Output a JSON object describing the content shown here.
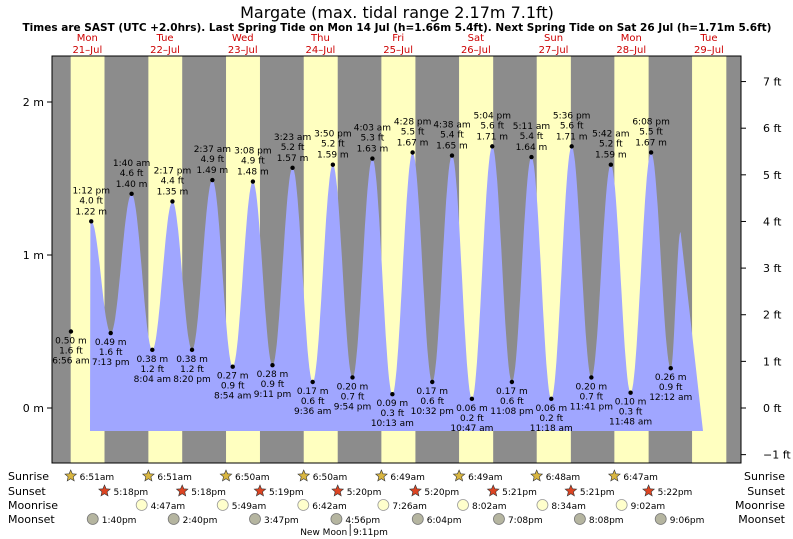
{
  "chart_data": {
    "type": "area",
    "title": "Margate (max. tidal range 2.17m 7.1ft)",
    "subtitle": "Times are SAST (UTC +2.0hrs). Last Spring Tide on Mon 14 Jul (h=1.66m 5.4ft). Next Spring Tide on Sat 26 Jul (h=1.71m 5.6ft)",
    "y_left_ticks": [
      {
        "v": 0,
        "label": "0 m"
      },
      {
        "v": 1,
        "label": "1 m"
      },
      {
        "v": 2,
        "label": "2 m"
      }
    ],
    "y_right_ticks": [
      {
        "ft": -1,
        "label": "−1 ft"
      },
      {
        "ft": 0,
        "label": "0 ft"
      },
      {
        "ft": 1,
        "label": "1 ft"
      },
      {
        "ft": 2,
        "label": "2 ft"
      },
      {
        "ft": 3,
        "label": "3 ft"
      },
      {
        "ft": 4,
        "label": "4 ft"
      },
      {
        "ft": 5,
        "label": "5 ft"
      },
      {
        "ft": 6,
        "label": "6 ft"
      },
      {
        "ft": 7,
        "label": "7 ft"
      }
    ],
    "ylim_m": [
      -0.3,
      2.3
    ],
    "days": [
      {
        "name": "Mon",
        "date": "21–Jul"
      },
      {
        "name": "Tue",
        "date": "22–Jul"
      },
      {
        "name": "Wed",
        "date": "23–Jul"
      },
      {
        "name": "Thu",
        "date": "24–Jul"
      },
      {
        "name": "Fri",
        "date": "25–Jul"
      },
      {
        "name": "Sat",
        "date": "26–Jul"
      },
      {
        "name": "Sun",
        "date": "27–Jul"
      },
      {
        "name": "Mon",
        "date": "28–Jul"
      },
      {
        "name": "Tue",
        "date": "29–Jul"
      }
    ],
    "tides": [
      {
        "day": 0,
        "time": "6:56 am",
        "h": 0.5,
        "m": "0.50 m",
        "ft": "1.6 ft",
        "type": "low"
      },
      {
        "day": 0,
        "time": "1:12 pm",
        "h": 1.22,
        "m": "1.22 m",
        "ft": "4.0 ft",
        "type": "high"
      },
      {
        "day": 0,
        "time": "7:13 pm",
        "h": 0.49,
        "m": "0.49 m",
        "ft": "1.6 ft",
        "type": "low"
      },
      {
        "day": 1,
        "time": "1:40 am",
        "h": 1.4,
        "m": "1.40 m",
        "ft": "4.6 ft",
        "type": "high"
      },
      {
        "day": 1,
        "time": "8:04 am",
        "h": 0.38,
        "m": "0.38 m",
        "ft": "1.2 ft",
        "type": "low"
      },
      {
        "day": 1,
        "time": "2:17 pm",
        "h": 1.35,
        "m": "1.35 m",
        "ft": "4.4 ft",
        "type": "high"
      },
      {
        "day": 1,
        "time": "8:20 pm",
        "h": 0.38,
        "m": "0.38 m",
        "ft": "1.2 ft",
        "type": "low"
      },
      {
        "day": 2,
        "time": "2:37 am",
        "h": 1.49,
        "m": "1.49 m",
        "ft": "4.9 ft",
        "type": "high"
      },
      {
        "day": 2,
        "time": "8:54 am",
        "h": 0.27,
        "m": "0.27 m",
        "ft": "0.9 ft",
        "type": "low"
      },
      {
        "day": 2,
        "time": "3:08 pm",
        "h": 1.48,
        "m": "1.48 m",
        "ft": "4.9 ft",
        "type": "high"
      },
      {
        "day": 2,
        "time": "9:11 pm",
        "h": 0.28,
        "m": "0.28 m",
        "ft": "0.9 ft",
        "type": "low"
      },
      {
        "day": 3,
        "time": "3:23 am",
        "h": 1.57,
        "m": "1.57 m",
        "ft": "5.2 ft",
        "type": "high"
      },
      {
        "day": 3,
        "time": "9:36 am",
        "h": 0.17,
        "m": "0.17 m",
        "ft": "0.6 ft",
        "type": "low"
      },
      {
        "day": 3,
        "time": "3:50 pm",
        "h": 1.59,
        "m": "1.59 m",
        "ft": "5.2 ft",
        "type": "high"
      },
      {
        "day": 3,
        "time": "9:54 pm",
        "h": 0.2,
        "m": "0.20 m",
        "ft": "0.7 ft",
        "type": "low"
      },
      {
        "day": 4,
        "time": "4:03 am",
        "h": 1.63,
        "m": "1.63 m",
        "ft": "5.3 ft",
        "type": "high"
      },
      {
        "day": 4,
        "time": "10:13 am",
        "h": 0.09,
        "m": "0.09 m",
        "ft": "0.3 ft",
        "type": "low"
      },
      {
        "day": 4,
        "time": "4:28 pm",
        "h": 1.67,
        "m": "1.67 m",
        "ft": "5.5 ft",
        "type": "high"
      },
      {
        "day": 4,
        "time": "10:32 pm",
        "h": 0.17,
        "m": "0.17 m",
        "ft": "0.6 ft",
        "type": "low"
      },
      {
        "day": 5,
        "time": "4:38 am",
        "h": 1.65,
        "m": "1.65 m",
        "ft": "5.4 ft",
        "type": "high"
      },
      {
        "day": 5,
        "time": "10:47 am",
        "h": 0.06,
        "m": "0.06 m",
        "ft": "0.2 ft",
        "type": "low"
      },
      {
        "day": 5,
        "time": "5:04 pm",
        "h": 1.71,
        "m": "1.71 m",
        "ft": "5.6 ft",
        "type": "high"
      },
      {
        "day": 5,
        "time": "11:08 pm",
        "h": 0.17,
        "m": "0.17 m",
        "ft": "0.6 ft",
        "type": "low"
      },
      {
        "day": 6,
        "time": "5:11 am",
        "h": 1.64,
        "m": "1.64 m",
        "ft": "5.4 ft",
        "type": "high"
      },
      {
        "day": 6,
        "time": "11:18 am",
        "h": 0.06,
        "m": "0.06 m",
        "ft": "0.2 ft",
        "type": "low"
      },
      {
        "day": 6,
        "time": "5:36 pm",
        "h": 1.71,
        "m": "1.71 m",
        "ft": "5.6 ft",
        "type": "high"
      },
      {
        "day": 6,
        "time": "11:41 pm",
        "h": 0.2,
        "m": "0.20 m",
        "ft": "0.7 ft",
        "type": "low"
      },
      {
        "day": 7,
        "time": "5:42 am",
        "h": 1.59,
        "m": "1.59 m",
        "ft": "5.2 ft",
        "type": "high"
      },
      {
        "day": 7,
        "time": "11:48 am",
        "h": 0.1,
        "m": "0.10 m",
        "ft": "0.3 ft",
        "type": "low"
      },
      {
        "day": 7,
        "time": "6:08 pm",
        "h": 1.67,
        "m": "1.67 m",
        "ft": "5.5 ft",
        "type": "high"
      },
      {
        "day": 8,
        "time": "12:12 am",
        "h": 0.26,
        "m": "0.26 m",
        "ft": "0.9 ft",
        "type": "low"
      }
    ],
    "sunrise": [
      "6:51am",
      "6:51am",
      "6:50am",
      "6:50am",
      "6:49am",
      "6:49am",
      "6:48am",
      "6:47am"
    ],
    "sunset": [
      "5:18pm",
      "5:18pm",
      "5:19pm",
      "5:20pm",
      "5:20pm",
      "5:21pm",
      "5:21pm",
      "5:22pm"
    ],
    "moonrise": [
      {
        "day": 1,
        "time": "4:47am"
      },
      {
        "day": 2,
        "time": "5:49am"
      },
      {
        "day": 3,
        "time": "6:42am"
      },
      {
        "day": 4,
        "time": "7:26am"
      },
      {
        "day": 5,
        "time": "8:02am"
      },
      {
        "day": 6,
        "time": "8:34am"
      },
      {
        "day": 7,
        "time": "9:02am"
      }
    ],
    "moonset": [
      {
        "day": 0,
        "time": "1:40pm"
      },
      {
        "day": 1,
        "time": "2:40pm"
      },
      {
        "day": 2,
        "time": "3:47pm"
      },
      {
        "day": 3,
        "time": "4:56pm"
      },
      {
        "day": 4,
        "time": "6:04pm"
      },
      {
        "day": 5,
        "time": "7:08pm"
      },
      {
        "day": 6,
        "time": "8:08pm"
      },
      {
        "day": 7,
        "time": "9:06pm"
      }
    ],
    "row_labels": {
      "sunrise": "Sunrise",
      "sunset": "Sunset",
      "moonrise": "Moonrise",
      "moonset": "Moonset"
    },
    "moon_phase": {
      "label": "New Moon",
      "time": "9:11pm",
      "day": 3
    },
    "colors": {
      "night": "#8c8c8c",
      "day": "#ffffc0",
      "water": "#a0a6ff",
      "day_label": "#cc0000",
      "star_fill": "#d9b640",
      "sunset_fill": "#dd4422",
      "moon_fill": "#ffffcc",
      "moonset_fill": "#b5b5a0"
    }
  }
}
